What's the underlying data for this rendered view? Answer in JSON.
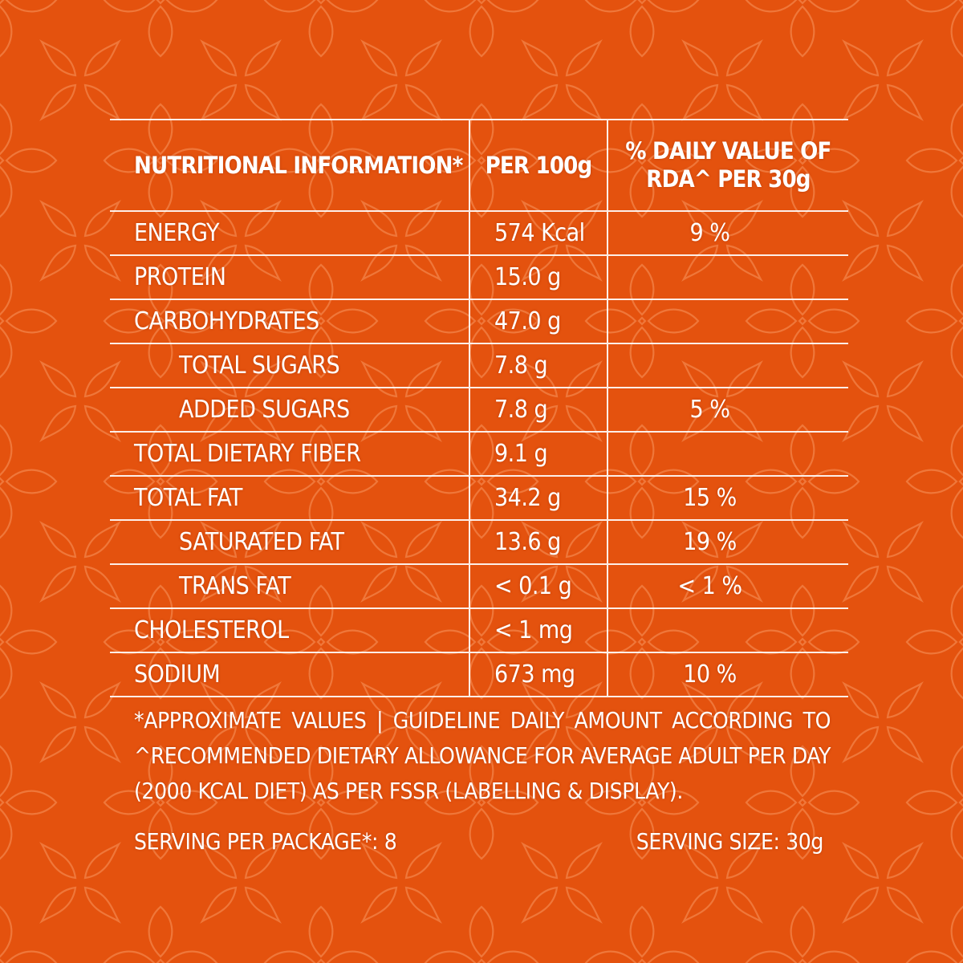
{
  "table": {
    "header": {
      "col1": "NUTRITIONAL INFORMATION*",
      "col2": "PER 100g",
      "col3_line1": "% DAILY VALUE OF",
      "col3_line2": "RDA^ PER 30g"
    },
    "rows": [
      {
        "name": "ENERGY",
        "per100": "574 Kcal",
        "dv": "9 %",
        "indent": false
      },
      {
        "name": "PROTEIN",
        "per100": "15.0 g",
        "dv": "",
        "indent": false
      },
      {
        "name": "CARBOHYDRATES",
        "per100": "47.0 g",
        "dv": "",
        "indent": false
      },
      {
        "name": "TOTAL SUGARS",
        "per100": "7.8 g",
        "dv": "",
        "indent": true
      },
      {
        "name": "ADDED SUGARS",
        "per100": "7.8 g",
        "dv": "5 %",
        "indent": true
      },
      {
        "name": "TOTAL DIETARY FIBER",
        "per100": "9.1 g",
        "dv": "",
        "indent": false
      },
      {
        "name": "TOTAL FAT",
        "per100": "34.2 g",
        "dv": "15 %",
        "indent": false
      },
      {
        "name": "SATURATED FAT",
        "per100": "13.6 g",
        "dv": "19 %",
        "indent": true
      },
      {
        "name": "TRANS FAT",
        "per100": "< 0.1 g",
        "dv": "< 1 %",
        "indent": true
      },
      {
        "name": "CHOLESTEROL",
        "per100": "< 1 mg",
        "dv": "",
        "indent": false
      },
      {
        "name": "SODIUM",
        "per100": "673 mg",
        "dv": "10 %",
        "indent": false
      }
    ]
  },
  "footnote": "*APPROXIMATE VALUES | GUIDELINE DAILY AMOUNT ACCORDING TO ^RECOMMENDED DIETARY ALLOWANCE FOR AVERAGE ADULT PER DAY (2000 KCAL DIET) AS PER FSSR (LABELLING & DISPLAY).",
  "serving_per_package": "SERVING PER PACKAGE*: 8",
  "serving_size": "SERVING SIZE: 30g",
  "colors": {
    "background": "#e4520e",
    "pattern": "#f07a3c",
    "text": "#ffffff"
  }
}
